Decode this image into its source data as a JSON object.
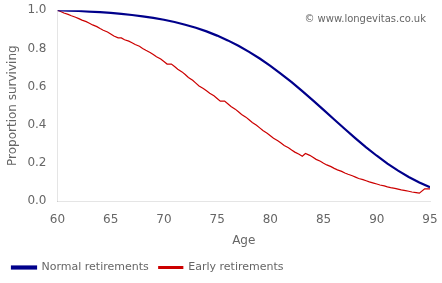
{
  "chart_data": {
    "type": "line",
    "xlabel": "Age",
    "ylabel": "Proportion surviving",
    "annotations": [
      {
        "text": "© www.longevitas.co.uk"
      }
    ],
    "xlim": [
      60,
      95
    ],
    "ylim": [
      0.0,
      1.0
    ],
    "xticks": [
      60,
      65,
      70,
      75,
      80,
      85,
      90,
      95
    ],
    "yticks": [
      {
        "value": 0.0,
        "label": "0.0"
      },
      0.2,
      0.4,
      0.6,
      0.8,
      {
        "value": 1.0,
        "label": "1.0"
      }
    ],
    "grid": false,
    "legend": "lower left",
    "series": [
      {
        "name": "Normal retirements",
        "color": "#00008B",
        "x": [
          60,
          61,
          62,
          63,
          64,
          65,
          66,
          67,
          68,
          69,
          70,
          71,
          72,
          73,
          74,
          75,
          76,
          77,
          78,
          79,
          80,
          81,
          82,
          83,
          84,
          85,
          86,
          87,
          88,
          89,
          90,
          91,
          92,
          93,
          94,
          95
        ],
        "values": [
          1.0,
          0.998,
          0.996,
          0.993,
          0.99,
          0.986,
          0.981,
          0.975,
          0.968,
          0.96,
          0.95,
          0.938,
          0.924,
          0.908,
          0.889,
          0.867,
          0.842,
          0.814,
          0.782,
          0.747,
          0.709,
          0.667,
          0.623,
          0.576,
          0.528,
          0.478,
          0.428,
          0.378,
          0.329,
          0.282,
          0.238,
          0.197,
          0.16,
          0.127,
          0.098,
          0.073
        ]
      },
      {
        "name": "Early retirements",
        "color": "#CC0000",
        "x": [
          60.0,
          60.3,
          60.6,
          61.0,
          61.3,
          61.7,
          62.0,
          62.3,
          62.7,
          63.0,
          63.3,
          63.7,
          64.0,
          64.3,
          64.7,
          65.0,
          65.3,
          65.7,
          66.0,
          66.3,
          66.7,
          67.0,
          67.3,
          67.7,
          68.0,
          68.3,
          68.7,
          69.0,
          69.3,
          69.7,
          70.0,
          70.3,
          70.7,
          71.0,
          71.3,
          71.7,
          72.0,
          72.3,
          72.7,
          73.0,
          73.3,
          73.7,
          74.0,
          74.3,
          74.7,
          75.0,
          75.3,
          75.7,
          76.0,
          76.3,
          76.7,
          77.0,
          77.3,
          77.7,
          78.0,
          78.3,
          78.7,
          79.0,
          79.3,
          79.7,
          80.0,
          80.3,
          80.7,
          81.0,
          81.3,
          81.7,
          82.0,
          82.3,
          82.7,
          83.0,
          83.3,
          83.7,
          84.0,
          84.3,
          84.7,
          85.0,
          85.3,
          85.7,
          86.0,
          86.3,
          86.7,
          87.0,
          87.3,
          87.7,
          88.0,
          88.3,
          88.7,
          89.0,
          89.3,
          89.7,
          90.0,
          90.3,
          90.7,
          91.0,
          91.3,
          91.7,
          92.0,
          92.3,
          92.7,
          93.0,
          93.3,
          93.7,
          94.0,
          94.5,
          95.0
        ],
        "values": [
          1.0,
          0.993,
          0.985,
          0.978,
          0.971,
          0.963,
          0.956,
          0.948,
          0.94,
          0.932,
          0.923,
          0.914,
          0.904,
          0.895,
          0.886,
          0.876,
          0.865,
          0.855,
          0.855,
          0.845,
          0.838,
          0.83,
          0.82,
          0.811,
          0.8,
          0.79,
          0.779,
          0.768,
          0.756,
          0.744,
          0.731,
          0.718,
          0.718,
          0.705,
          0.691,
          0.677,
          0.663,
          0.648,
          0.633,
          0.618,
          0.603,
          0.59,
          0.578,
          0.565,
          0.552,
          0.538,
          0.524,
          0.524,
          0.51,
          0.496,
          0.482,
          0.468,
          0.454,
          0.44,
          0.426,
          0.412,
          0.398,
          0.384,
          0.37,
          0.356,
          0.343,
          0.33,
          0.317,
          0.305,
          0.292,
          0.28,
          0.268,
          0.257,
          0.246,
          0.235,
          0.25,
          0.24,
          0.23,
          0.219,
          0.209,
          0.199,
          0.19,
          0.181,
          0.172,
          0.164,
          0.156,
          0.148,
          0.141,
          0.133,
          0.126,
          0.119,
          0.113,
          0.107,
          0.101,
          0.095,
          0.09,
          0.085,
          0.08,
          0.075,
          0.071,
          0.067,
          0.063,
          0.059,
          0.055,
          0.052,
          0.048,
          0.045,
          0.042,
          0.065,
          0.065
        ]
      }
    ]
  }
}
